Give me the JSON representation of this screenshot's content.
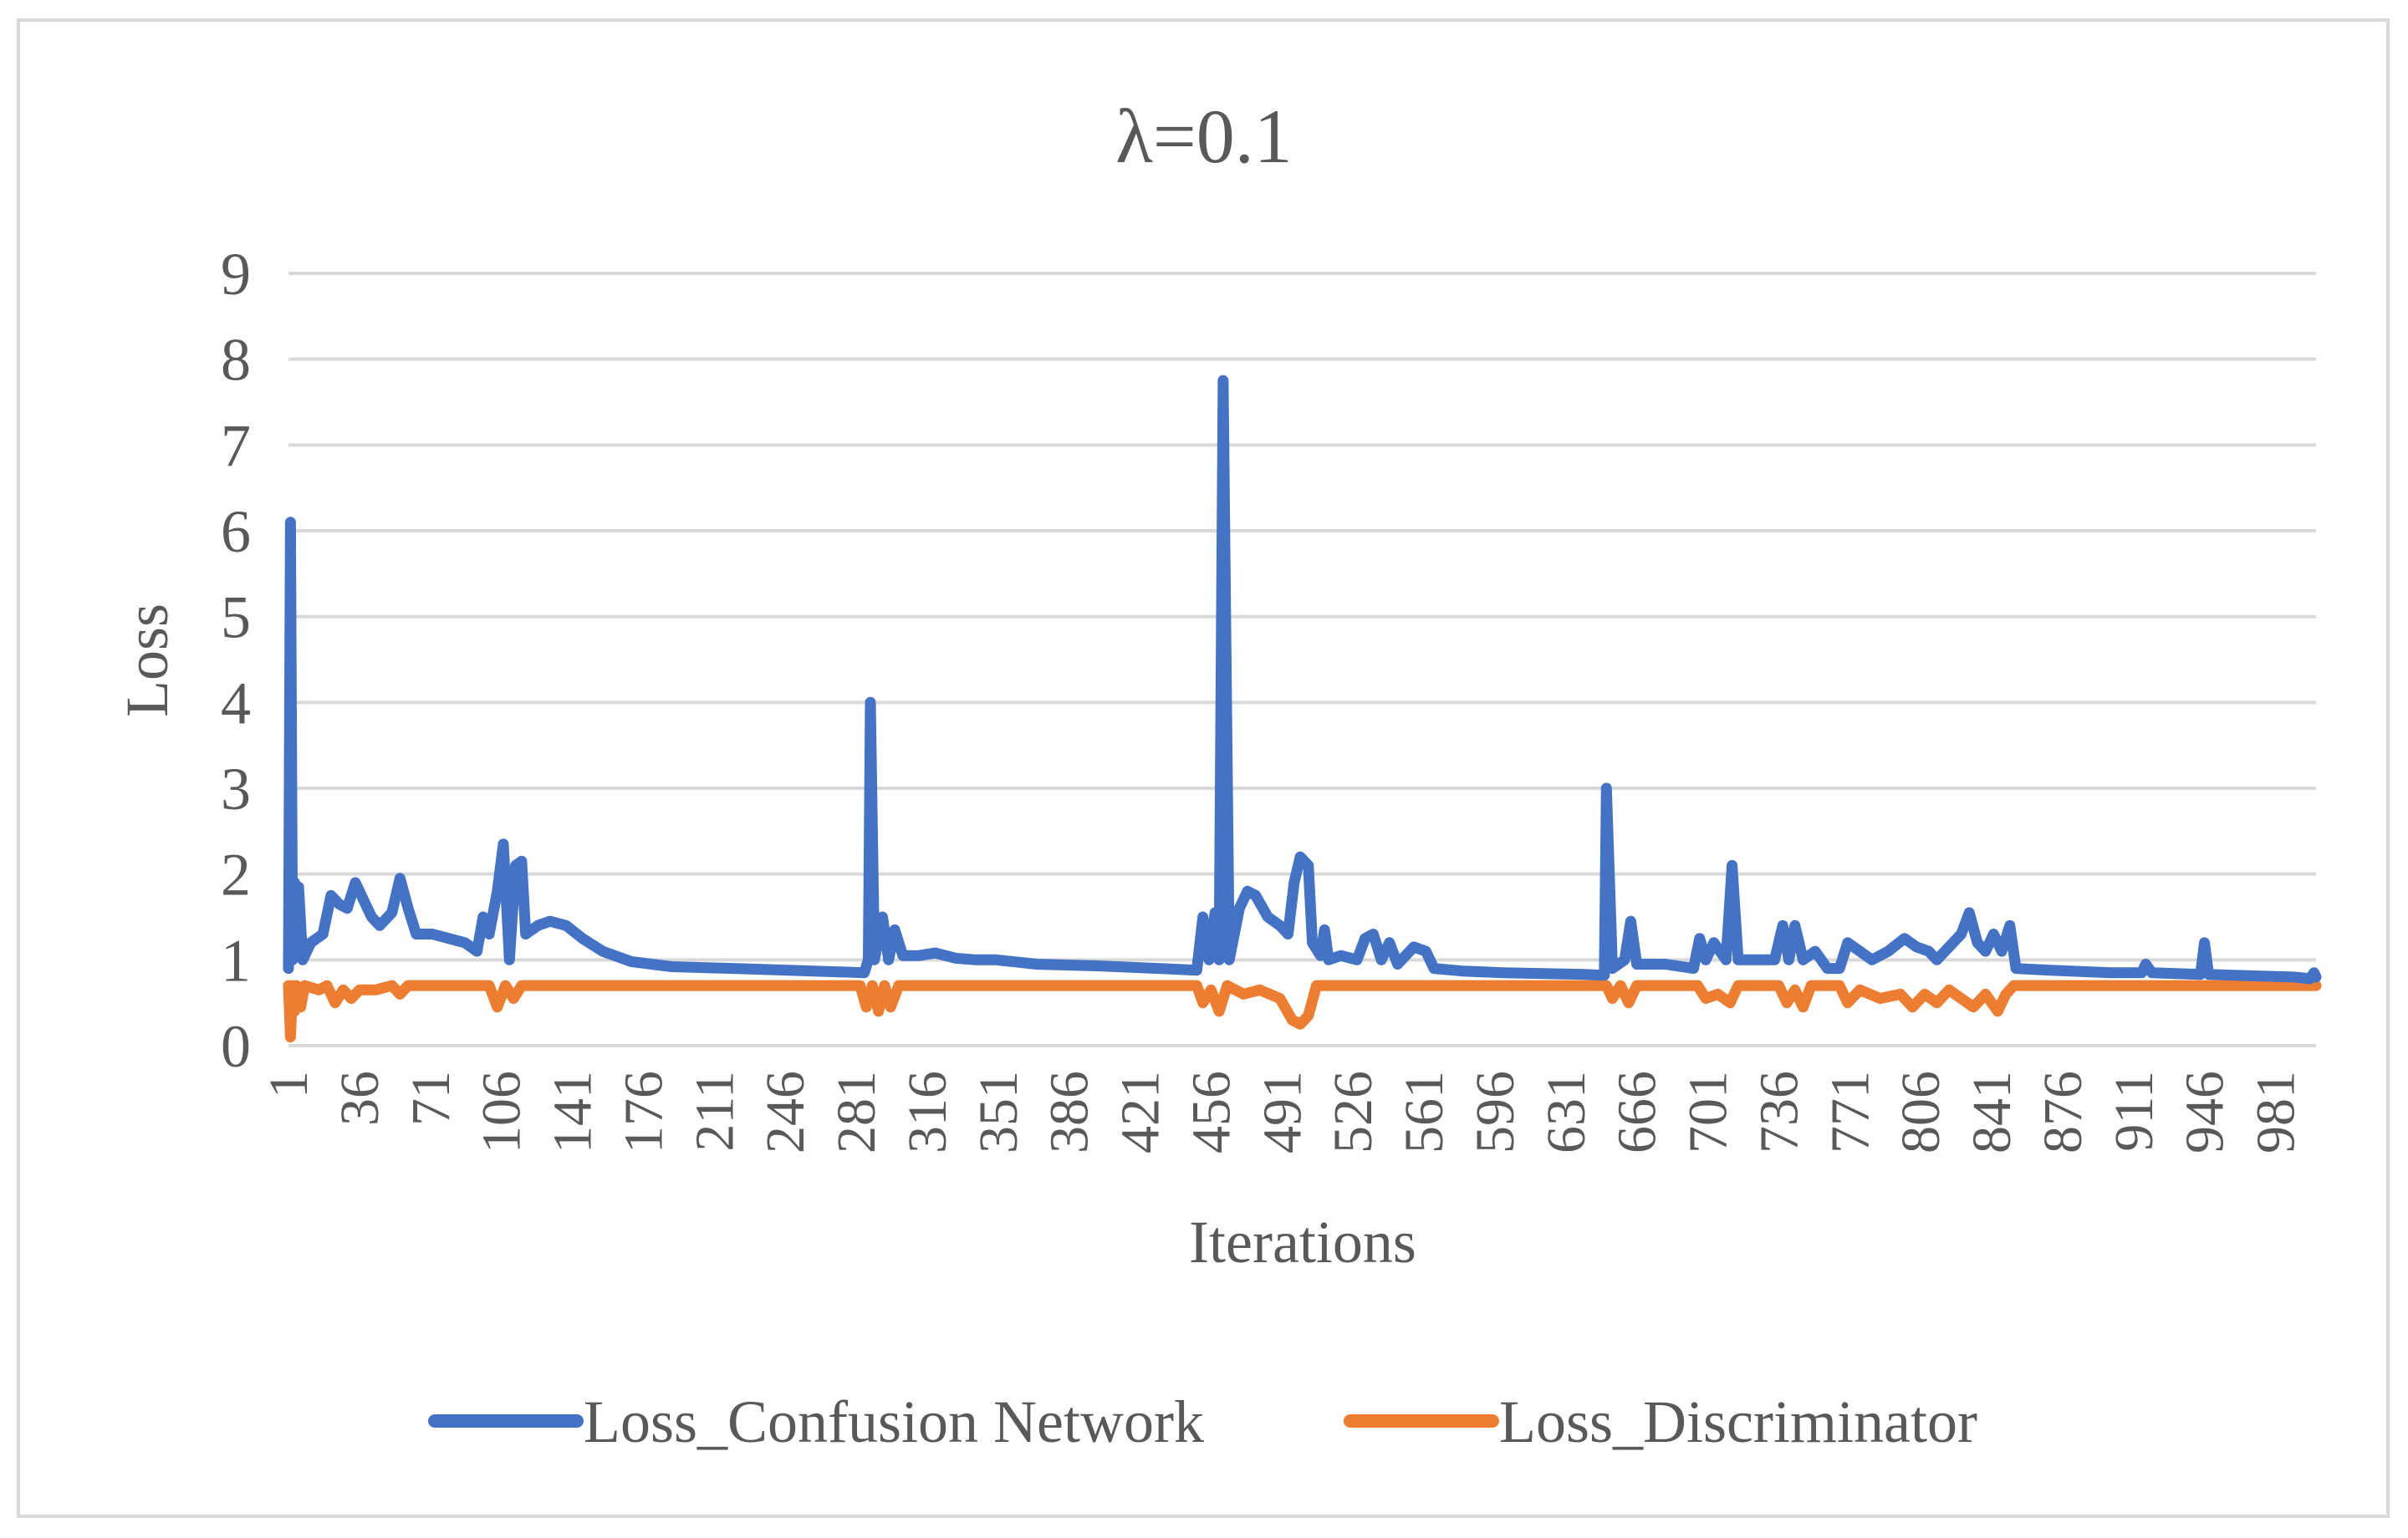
{
  "chart_data": {
    "type": "line",
    "title": "λ=0.1",
    "xlabel": "Iterations",
    "ylabel": "Loss",
    "ylim": [
      0,
      9
    ],
    "yticks": [
      0,
      1,
      2,
      3,
      4,
      5,
      6,
      7,
      8,
      9
    ],
    "xlim": [
      1,
      1001
    ],
    "xtick_labels": [
      "1",
      "36",
      "71",
      "106",
      "141",
      "176",
      "211",
      "246",
      "281",
      "316",
      "351",
      "386",
      "421",
      "456",
      "491",
      "526",
      "561",
      "596",
      "631",
      "666",
      "701",
      "736",
      "771",
      "806",
      "841",
      "876",
      "911",
      "946",
      "981"
    ],
    "xtick_values": [
      1,
      36,
      71,
      106,
      141,
      176,
      211,
      246,
      281,
      316,
      351,
      386,
      421,
      456,
      491,
      526,
      561,
      596,
      631,
      666,
      701,
      736,
      771,
      806,
      841,
      876,
      911,
      946,
      981
    ],
    "grid": true,
    "legend": "bottom",
    "series": [
      {
        "name": "Loss_Confusion Network",
        "color": "#4472c4",
        "points": [
          [
            1,
            0.9
          ],
          [
            2,
            6.1
          ],
          [
            3,
            1.0
          ],
          [
            4,
            1.9
          ],
          [
            5,
            1.1
          ],
          [
            6,
            1.85
          ],
          [
            8,
            1.0
          ],
          [
            12,
            1.2
          ],
          [
            18,
            1.3
          ],
          [
            22,
            1.75
          ],
          [
            26,
            1.65
          ],
          [
            30,
            1.6
          ],
          [
            34,
            1.9
          ],
          [
            38,
            1.7
          ],
          [
            42,
            1.5
          ],
          [
            46,
            1.4
          ],
          [
            52,
            1.55
          ],
          [
            56,
            1.95
          ],
          [
            60,
            1.6
          ],
          [
            64,
            1.3
          ],
          [
            72,
            1.3
          ],
          [
            80,
            1.25
          ],
          [
            88,
            1.2
          ],
          [
            94,
            1.1
          ],
          [
            97,
            1.5
          ],
          [
            100,
            1.3
          ],
          [
            104,
            1.8
          ],
          [
            107,
            2.35
          ],
          [
            110,
            1.0
          ],
          [
            113,
            2.1
          ],
          [
            116,
            2.15
          ],
          [
            118,
            1.3
          ],
          [
            124,
            1.4
          ],
          [
            130,
            1.45
          ],
          [
            138,
            1.4
          ],
          [
            146,
            1.25
          ],
          [
            156,
            1.1
          ],
          [
            170,
            0.98
          ],
          [
            190,
            0.92
          ],
          [
            220,
            0.9
          ],
          [
            260,
            0.87
          ],
          [
            285,
            0.85
          ],
          [
            287,
            1.0
          ],
          [
            288,
            4.0
          ],
          [
            290,
            1.0
          ],
          [
            294,
            1.5
          ],
          [
            297,
            1.0
          ],
          [
            300,
            1.35
          ],
          [
            304,
            1.05
          ],
          [
            312,
            1.05
          ],
          [
            320,
            1.08
          ],
          [
            330,
            1.02
          ],
          [
            340,
            1.0
          ],
          [
            350,
            1.0
          ],
          [
            370,
            0.95
          ],
          [
            400,
            0.93
          ],
          [
            430,
            0.9
          ],
          [
            449,
            0.88
          ],
          [
            452,
            1.5
          ],
          [
            455,
            1.0
          ],
          [
            458,
            1.55
          ],
          [
            460,
            1.0
          ],
          [
            462,
            7.75
          ],
          [
            465,
            1.0
          ],
          [
            470,
            1.6
          ],
          [
            474,
            1.8
          ],
          [
            478,
            1.75
          ],
          [
            484,
            1.5
          ],
          [
            490,
            1.4
          ],
          [
            494,
            1.3
          ],
          [
            497,
            1.9
          ],
          [
            500,
            2.2
          ],
          [
            504,
            2.1
          ],
          [
            506,
            1.2
          ],
          [
            510,
            1.05
          ],
          [
            512,
            1.35
          ],
          [
            514,
            1.0
          ],
          [
            520,
            1.05
          ],
          [
            528,
            1.0
          ],
          [
            532,
            1.25
          ],
          [
            536,
            1.3
          ],
          [
            540,
            1.0
          ],
          [
            544,
            1.2
          ],
          [
            548,
            0.95
          ],
          [
            556,
            1.15
          ],
          [
            562,
            1.1
          ],
          [
            566,
            0.9
          ],
          [
            580,
            0.87
          ],
          [
            600,
            0.85
          ],
          [
            640,
            0.83
          ],
          [
            650,
            0.82
          ],
          [
            651,
            3.0
          ],
          [
            654,
            0.9
          ],
          [
            660,
            1.0
          ],
          [
            663,
            1.45
          ],
          [
            666,
            0.95
          ],
          [
            680,
            0.95
          ],
          [
            694,
            0.9
          ],
          [
            697,
            1.25
          ],
          [
            700,
            1.0
          ],
          [
            704,
            1.2
          ],
          [
            710,
            1.0
          ],
          [
            713,
            2.1
          ],
          [
            716,
            1.0
          ],
          [
            724,
            1.0
          ],
          [
            734,
            1.0
          ],
          [
            738,
            1.4
          ],
          [
            741,
            1.0
          ],
          [
            744,
            1.4
          ],
          [
            748,
            1.0
          ],
          [
            754,
            1.1
          ],
          [
            760,
            0.9
          ],
          [
            766,
            0.9
          ],
          [
            770,
            1.2
          ],
          [
            776,
            1.1
          ],
          [
            782,
            1.0
          ],
          [
            790,
            1.1
          ],
          [
            798,
            1.25
          ],
          [
            804,
            1.15
          ],
          [
            810,
            1.1
          ],
          [
            814,
            1.0
          ],
          [
            820,
            1.15
          ],
          [
            826,
            1.3
          ],
          [
            830,
            1.55
          ],
          [
            834,
            1.2
          ],
          [
            838,
            1.1
          ],
          [
            842,
            1.3
          ],
          [
            846,
            1.1
          ],
          [
            850,
            1.4
          ],
          [
            853,
            0.9
          ],
          [
            870,
            0.88
          ],
          [
            900,
            0.85
          ],
          [
            915,
            0.85
          ],
          [
            917,
            0.95
          ],
          [
            920,
            0.85
          ],
          [
            944,
            0.83
          ],
          [
            946,
            1.2
          ],
          [
            948,
            0.83
          ],
          [
            990,
            0.8
          ],
          [
            998,
            0.78
          ],
          [
            1000,
            0.85
          ],
          [
            1001,
            0.8
          ]
        ]
      },
      {
        "name": "Loss_Discriminator",
        "color": "#ed7d31",
        "points": [
          [
            1,
            0.7
          ],
          [
            2,
            0.1
          ],
          [
            3,
            0.7
          ],
          [
            4,
            0.4
          ],
          [
            5,
            0.7
          ],
          [
            7,
            0.45
          ],
          [
            9,
            0.7
          ],
          [
            16,
            0.65
          ],
          [
            20,
            0.7
          ],
          [
            24,
            0.5
          ],
          [
            28,
            0.65
          ],
          [
            32,
            0.55
          ],
          [
            36,
            0.65
          ],
          [
            44,
            0.65
          ],
          [
            52,
            0.7
          ],
          [
            56,
            0.6
          ],
          [
            60,
            0.7
          ],
          [
            100,
            0.7
          ],
          [
            104,
            0.45
          ],
          [
            108,
            0.7
          ],
          [
            112,
            0.55
          ],
          [
            116,
            0.7
          ],
          [
            283,
            0.7
          ],
          [
            286,
            0.45
          ],
          [
            289,
            0.7
          ],
          [
            292,
            0.4
          ],
          [
            295,
            0.7
          ],
          [
            298,
            0.45
          ],
          [
            302,
            0.7
          ],
          [
            449,
            0.7
          ],
          [
            452,
            0.5
          ],
          [
            456,
            0.65
          ],
          [
            460,
            0.4
          ],
          [
            464,
            0.7
          ],
          [
            472,
            0.6
          ],
          [
            480,
            0.65
          ],
          [
            490,
            0.55
          ],
          [
            496,
            0.3
          ],
          [
            500,
            0.25
          ],
          [
            504,
            0.35
          ],
          [
            508,
            0.7
          ],
          [
            651,
            0.7
          ],
          [
            654,
            0.55
          ],
          [
            658,
            0.7
          ],
          [
            662,
            0.5
          ],
          [
            666,
            0.7
          ],
          [
            696,
            0.7
          ],
          [
            700,
            0.55
          ],
          [
            706,
            0.6
          ],
          [
            712,
            0.5
          ],
          [
            716,
            0.7
          ],
          [
            736,
            0.7
          ],
          [
            740,
            0.5
          ],
          [
            744,
            0.65
          ],
          [
            748,
            0.45
          ],
          [
            752,
            0.7
          ],
          [
            766,
            0.7
          ],
          [
            770,
            0.5
          ],
          [
            776,
            0.65
          ],
          [
            786,
            0.55
          ],
          [
            796,
            0.6
          ],
          [
            802,
            0.45
          ],
          [
            808,
            0.6
          ],
          [
            814,
            0.5
          ],
          [
            820,
            0.65
          ],
          [
            826,
            0.55
          ],
          [
            832,
            0.45
          ],
          [
            838,
            0.6
          ],
          [
            844,
            0.4
          ],
          [
            848,
            0.6
          ],
          [
            852,
            0.7
          ],
          [
            1001,
            0.7
          ]
        ]
      }
    ]
  }
}
